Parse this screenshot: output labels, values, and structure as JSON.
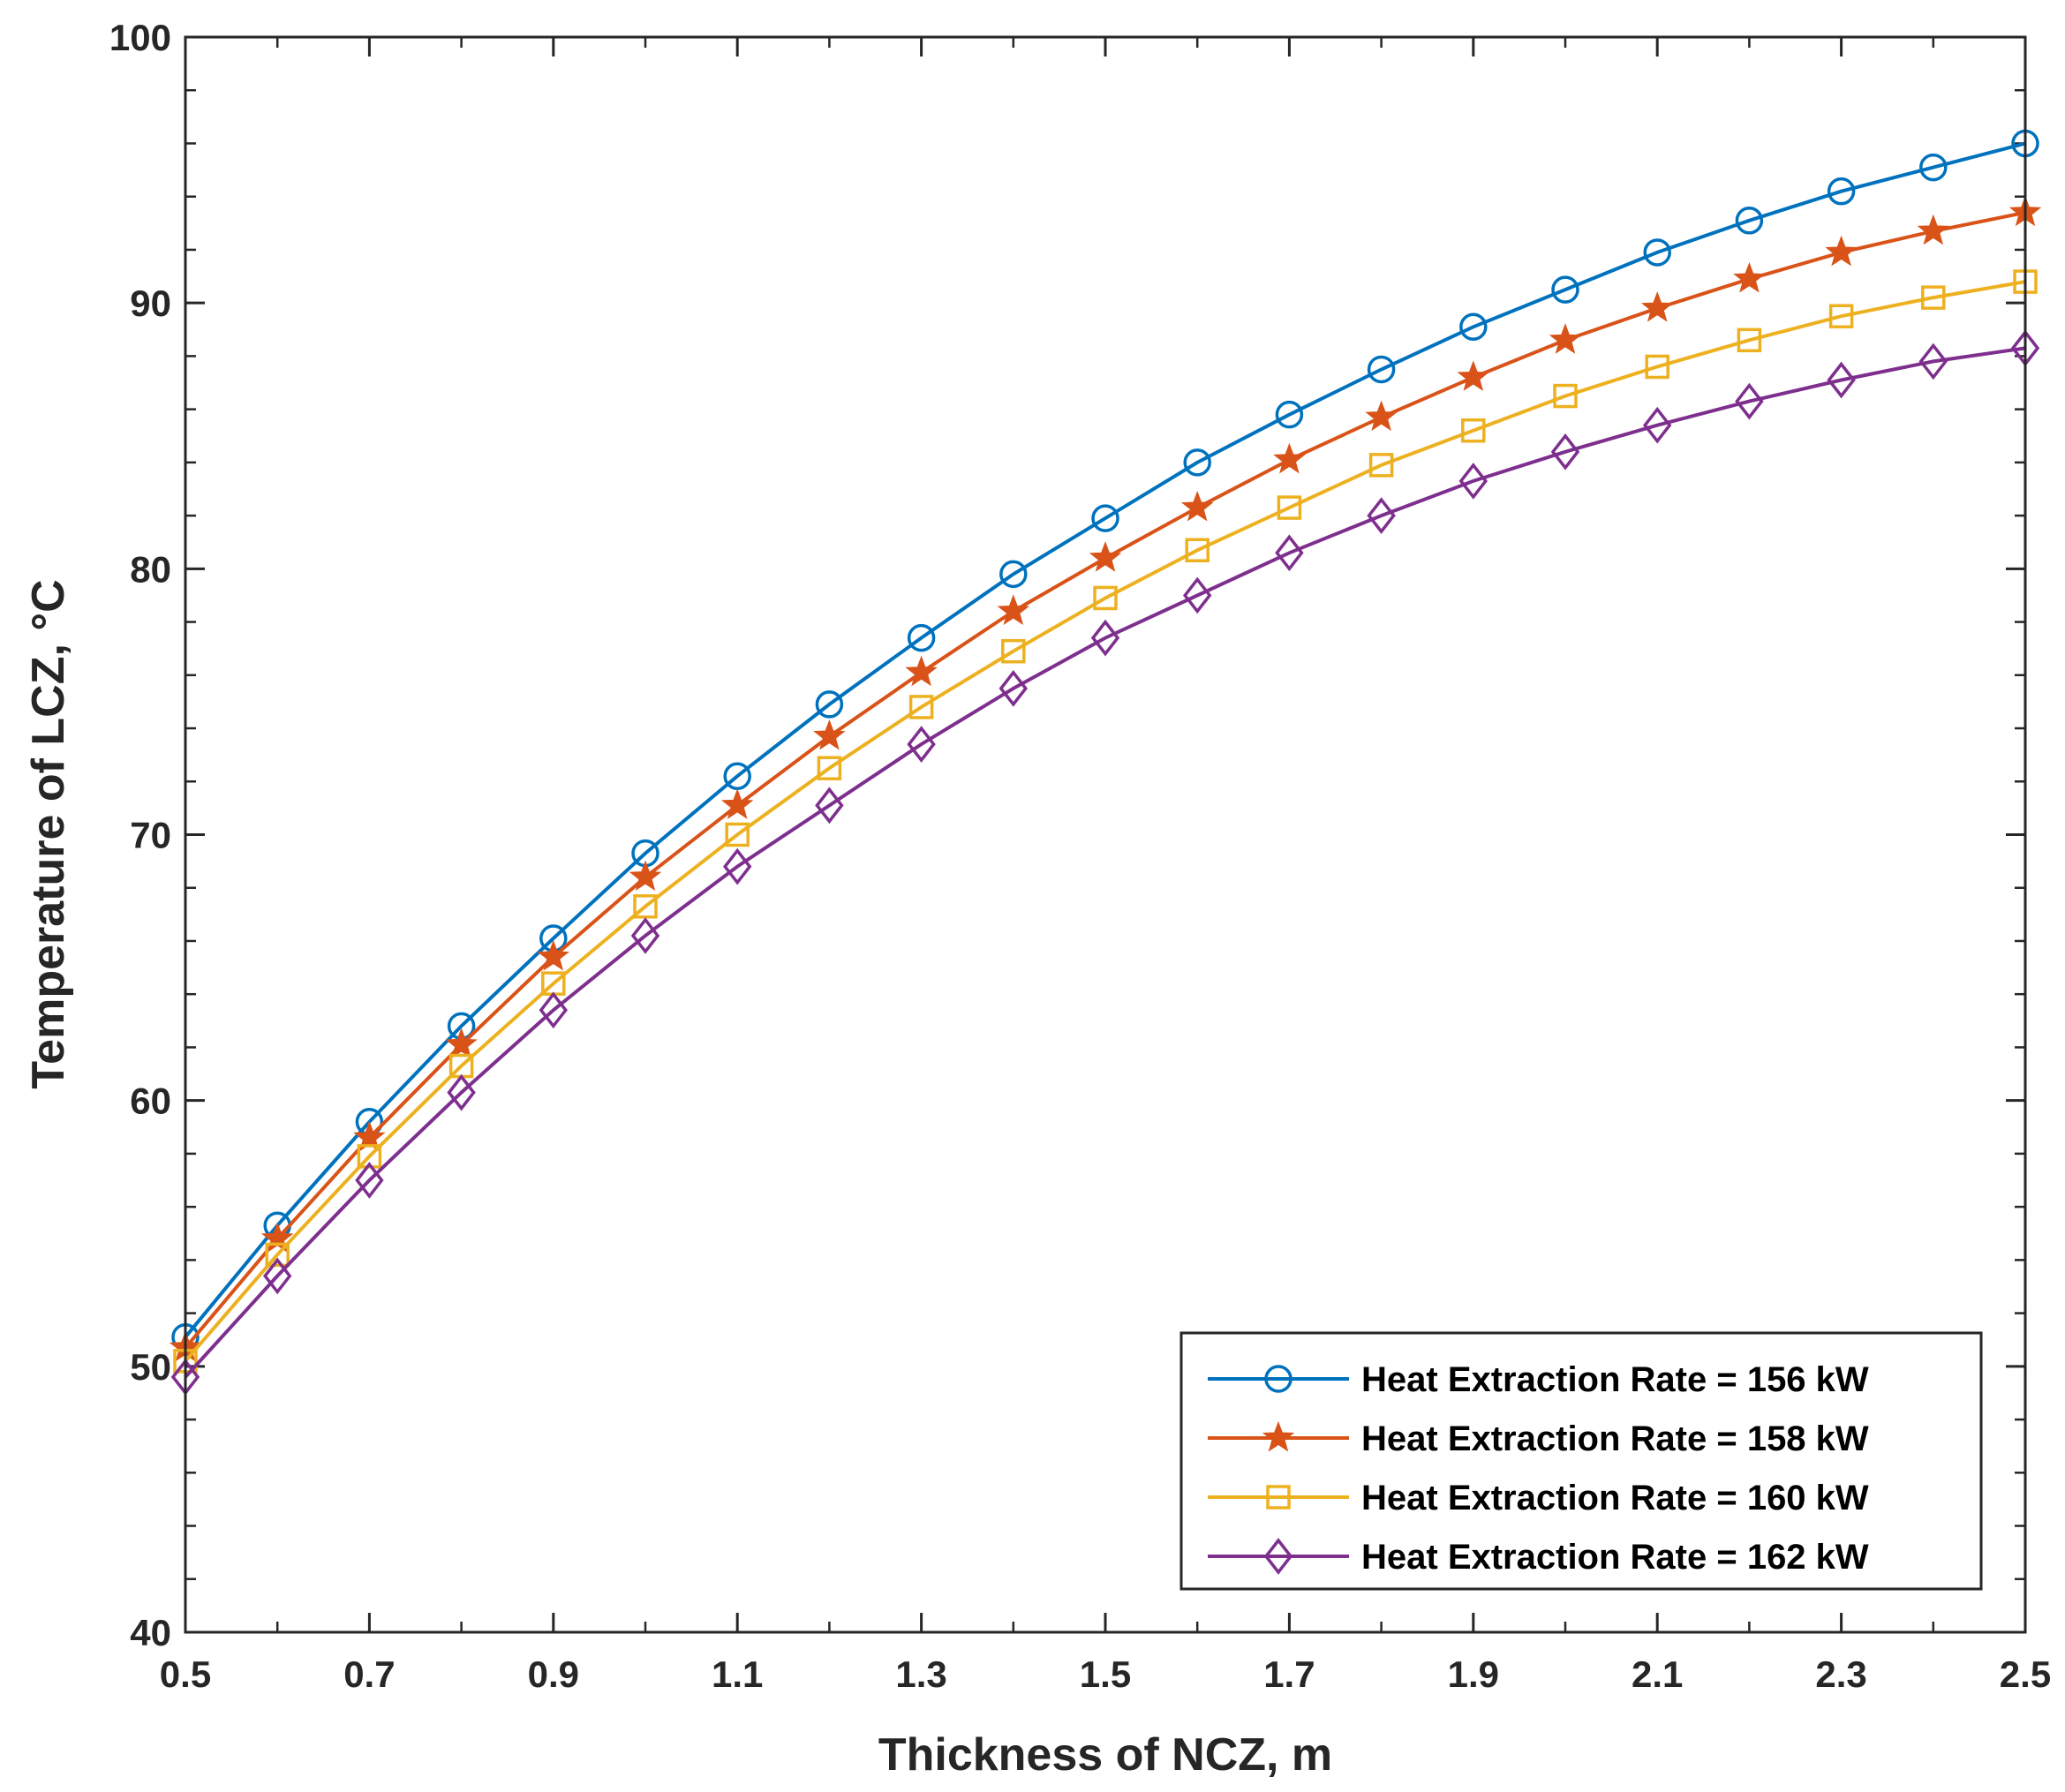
{
  "chart_data": {
    "type": "line",
    "xlabel": "Thickness of NCZ, m",
    "ylabel": "Temperature of LCZ, °C",
    "xlim": [
      0.5,
      2.5
    ],
    "ylim": [
      40,
      100
    ],
    "xticks": [
      0.5,
      0.7,
      0.9,
      1.1,
      1.3,
      1.5,
      1.7,
      1.9,
      2.1,
      2.3,
      2.5
    ],
    "xtick_labels": [
      "0.5",
      "0.7",
      "0.9",
      "1.1",
      "1.3",
      "1.5",
      "1.7",
      "1.9",
      "2.1",
      "2.3",
      "2.5"
    ],
    "yticks": [
      40,
      50,
      60,
      70,
      80,
      90,
      100
    ],
    "ytick_labels": [
      "40",
      "50",
      "60",
      "70",
      "80",
      "90",
      "100"
    ],
    "legend_position": "bottom-right",
    "x": [
      0.5,
      0.6,
      0.7,
      0.8,
      0.9,
      1.0,
      1.1,
      1.2,
      1.3,
      1.4,
      1.5,
      1.6,
      1.7,
      1.8,
      1.9,
      2.0,
      2.1,
      2.2,
      2.3,
      2.4,
      2.5
    ],
    "series": [
      {
        "name": "Heat Extraction Rate = 156 kW",
        "color": "#0072BD",
        "marker": "circle",
        "values": [
          51.1,
          55.3,
          59.2,
          62.8,
          66.1,
          69.3,
          72.2,
          74.9,
          77.4,
          79.8,
          81.9,
          84.0,
          85.8,
          87.5,
          89.1,
          90.5,
          91.9,
          93.1,
          94.2,
          95.1,
          96.0
        ]
      },
      {
        "name": "Heat Extraction Rate = 158 kW",
        "color": "#D95319",
        "marker": "star",
        "values": [
          50.7,
          54.8,
          58.6,
          62.1,
          65.4,
          68.4,
          71.1,
          73.7,
          76.1,
          78.4,
          80.4,
          82.3,
          84.1,
          85.7,
          87.2,
          88.6,
          89.8,
          90.9,
          91.9,
          92.7,
          93.4
        ]
      },
      {
        "name": "Heat Extraction Rate = 160 kW",
        "color": "#EDB120",
        "marker": "square",
        "values": [
          50.2,
          54.2,
          57.9,
          61.3,
          64.4,
          67.3,
          70.0,
          72.5,
          74.8,
          76.9,
          78.9,
          80.7,
          82.3,
          83.9,
          85.2,
          86.5,
          87.6,
          88.6,
          89.5,
          90.2,
          90.8
        ]
      },
      {
        "name": "Heat Extraction Rate = 162 kW",
        "color": "#7E2F8E",
        "marker": "diamond",
        "values": [
          49.6,
          53.4,
          57.0,
          60.3,
          63.4,
          66.2,
          68.8,
          71.1,
          73.4,
          75.5,
          77.4,
          79.0,
          80.6,
          82.0,
          83.3,
          84.4,
          85.4,
          86.3,
          87.1,
          87.8,
          88.3
        ]
      }
    ]
  }
}
